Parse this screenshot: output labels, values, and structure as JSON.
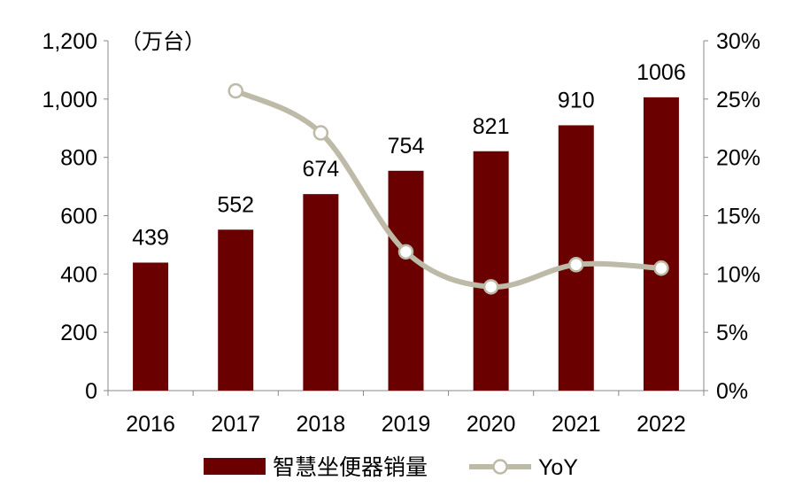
{
  "chart_data": {
    "type": "bar",
    "unit_label": "（万台）",
    "categories": [
      "2016",
      "2017",
      "2018",
      "2019",
      "2020",
      "2021",
      "2022"
    ],
    "series": [
      {
        "name": "智慧坐便器销量",
        "type": "bar",
        "axis": "left",
        "values": [
          439,
          552,
          674,
          754,
          821,
          910,
          1006
        ],
        "color": "#6B0000"
      },
      {
        "name": "YoY",
        "type": "line",
        "axis": "right",
        "values": [
          null,
          25.7,
          22.1,
          11.9,
          8.9,
          10.8,
          10.5
        ],
        "color": "#BEBAA8"
      }
    ],
    "left_axis": {
      "ylim": [
        0,
        1200
      ],
      "ticks": [
        "0",
        "200",
        "400",
        "600",
        "800",
        "1,000",
        "1,200"
      ]
    },
    "right_axis": {
      "ylim": [
        0,
        30
      ],
      "ticks": [
        "0%",
        "5%",
        "10%",
        "15%",
        "20%",
        "25%",
        "30%"
      ]
    },
    "legend": {
      "placement": "bottom"
    }
  }
}
